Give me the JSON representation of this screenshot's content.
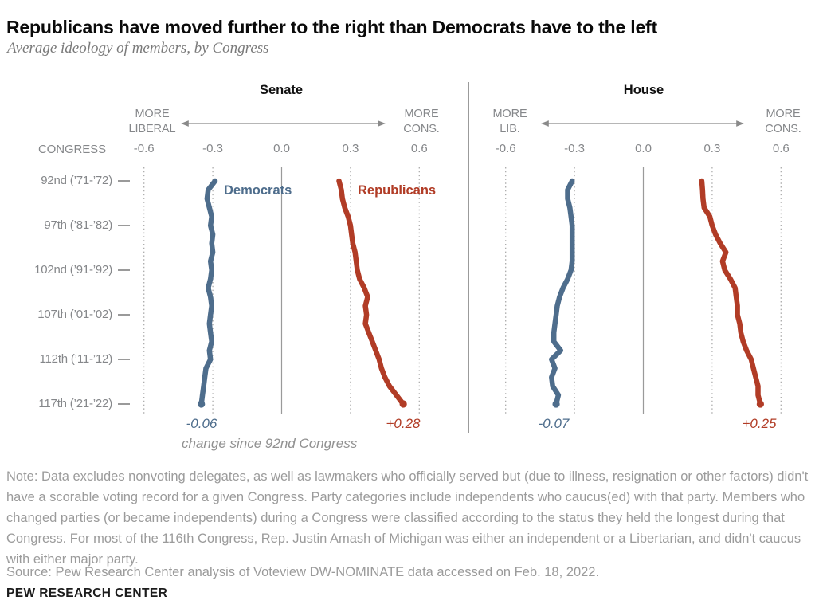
{
  "header": {
    "title": "Republicans have moved further to the right than Democrats have to the left",
    "subtitle": "Average ideology of members, by Congress"
  },
  "chart_data": {
    "type": "line",
    "orientation": "vertical-trails",
    "congress_axis_label": "CONGRESS",
    "x_tick_labels": [
      "-0.6",
      "-0.3",
      "0.0",
      "0.3",
      "0.6"
    ],
    "x_tick_values": [
      -0.6,
      -0.3,
      0,
      0.3,
      0.6
    ],
    "xlim": [
      -0.6,
      0.6
    ],
    "congresses": [
      92,
      93,
      94,
      95,
      96,
      97,
      98,
      99,
      100,
      101,
      102,
      103,
      104,
      105,
      106,
      107,
      108,
      109,
      110,
      111,
      112,
      113,
      114,
      115,
      116,
      117
    ],
    "row_labels": [
      {
        "congress": 92,
        "label": "92nd (’71-’72)"
      },
      {
        "congress": 97,
        "label": "97th (’81-’82)"
      },
      {
        "congress": 102,
        "label": "102nd (’91-’92)"
      },
      {
        "congress": 107,
        "label": "107th (’01-’02)"
      },
      {
        "congress": 112,
        "label": "112th (’11-’12)"
      },
      {
        "congress": 117,
        "label": "117th (’21-’22)"
      }
    ],
    "change_caption": "change since 92nd Congress",
    "panels": [
      {
        "title": "Senate",
        "axis_left": {
          "line1": "MORE",
          "line2": "LIBERAL"
        },
        "axis_right": {
          "line1": "MORE",
          "line2": "CONS."
        },
        "series": [
          {
            "name": "Democrats",
            "color": "#4e6d8c",
            "change_since_92nd": "-0.06",
            "values": [
              -0.29,
              -0.32,
              -0.325,
              -0.315,
              -0.305,
              -0.31,
              -0.3,
              -0.305,
              -0.3,
              -0.31,
              -0.305,
              -0.31,
              -0.32,
              -0.31,
              -0.305,
              -0.31,
              -0.315,
              -0.31,
              -0.305,
              -0.315,
              -0.31,
              -0.33,
              -0.335,
              -0.34,
              -0.345,
              -0.35
            ]
          },
          {
            "name": "Republicans",
            "color": "#b13c26",
            "change_since_92nd": "+0.28",
            "values": [
              0.25,
              0.26,
              0.265,
              0.275,
              0.29,
              0.3,
              0.305,
              0.31,
              0.32,
              0.325,
              0.33,
              0.34,
              0.36,
              0.375,
              0.365,
              0.37,
              0.365,
              0.38,
              0.395,
              0.41,
              0.425,
              0.435,
              0.45,
              0.47,
              0.5,
              0.53
            ]
          }
        ]
      },
      {
        "title": "House",
        "axis_left": {
          "line1": "MORE",
          "line2": "LIB."
        },
        "axis_right": {
          "line1": "MORE",
          "line2": "CONS."
        },
        "series": [
          {
            "name": "Democrats",
            "color": "#4e6d8c",
            "change_since_92nd": "-0.07",
            "values": [
              -0.31,
              -0.33,
              -0.33,
              -0.32,
              -0.315,
              -0.31,
              -0.31,
              -0.31,
              -0.31,
              -0.31,
              -0.315,
              -0.33,
              -0.35,
              -0.365,
              -0.375,
              -0.38,
              -0.385,
              -0.39,
              -0.39,
              -0.36,
              -0.4,
              -0.385,
              -0.4,
              -0.395,
              -0.37,
              -0.38
            ]
          },
          {
            "name": "Republicans",
            "color": "#b13c26",
            "change_since_92nd": "+0.25",
            "values": [
              0.255,
              0.258,
              0.26,
              0.265,
              0.29,
              0.3,
              0.315,
              0.335,
              0.36,
              0.345,
              0.355,
              0.38,
              0.4,
              0.405,
              0.41,
              0.41,
              0.42,
              0.425,
              0.435,
              0.45,
              0.47,
              0.48,
              0.49,
              0.5,
              0.5,
              0.51
            ]
          }
        ]
      }
    ]
  },
  "note": {
    "text": "Note: Data excludes nonvoting delegates, as well as lawmakers who officially served but (due to illness, resignation or other factors) didn't have a scorable voting record for a given Congress. Party categories include independents who caucus(ed) with that party. Members who changed parties (or became independents) during a Congress were classified according to the status they held the longest during that Congress. For most of the 116th Congress, Rep. Justin Amash of Michigan was either an independent or a Libertarian, and didn't caucus with either major party.",
    "source": "Source: Pew Research Center analysis of Voteview DW-NOMINATE data accessed on Feb. 18, 2022."
  },
  "footer": {
    "wordmark": "PEW RESEARCH CENTER"
  }
}
